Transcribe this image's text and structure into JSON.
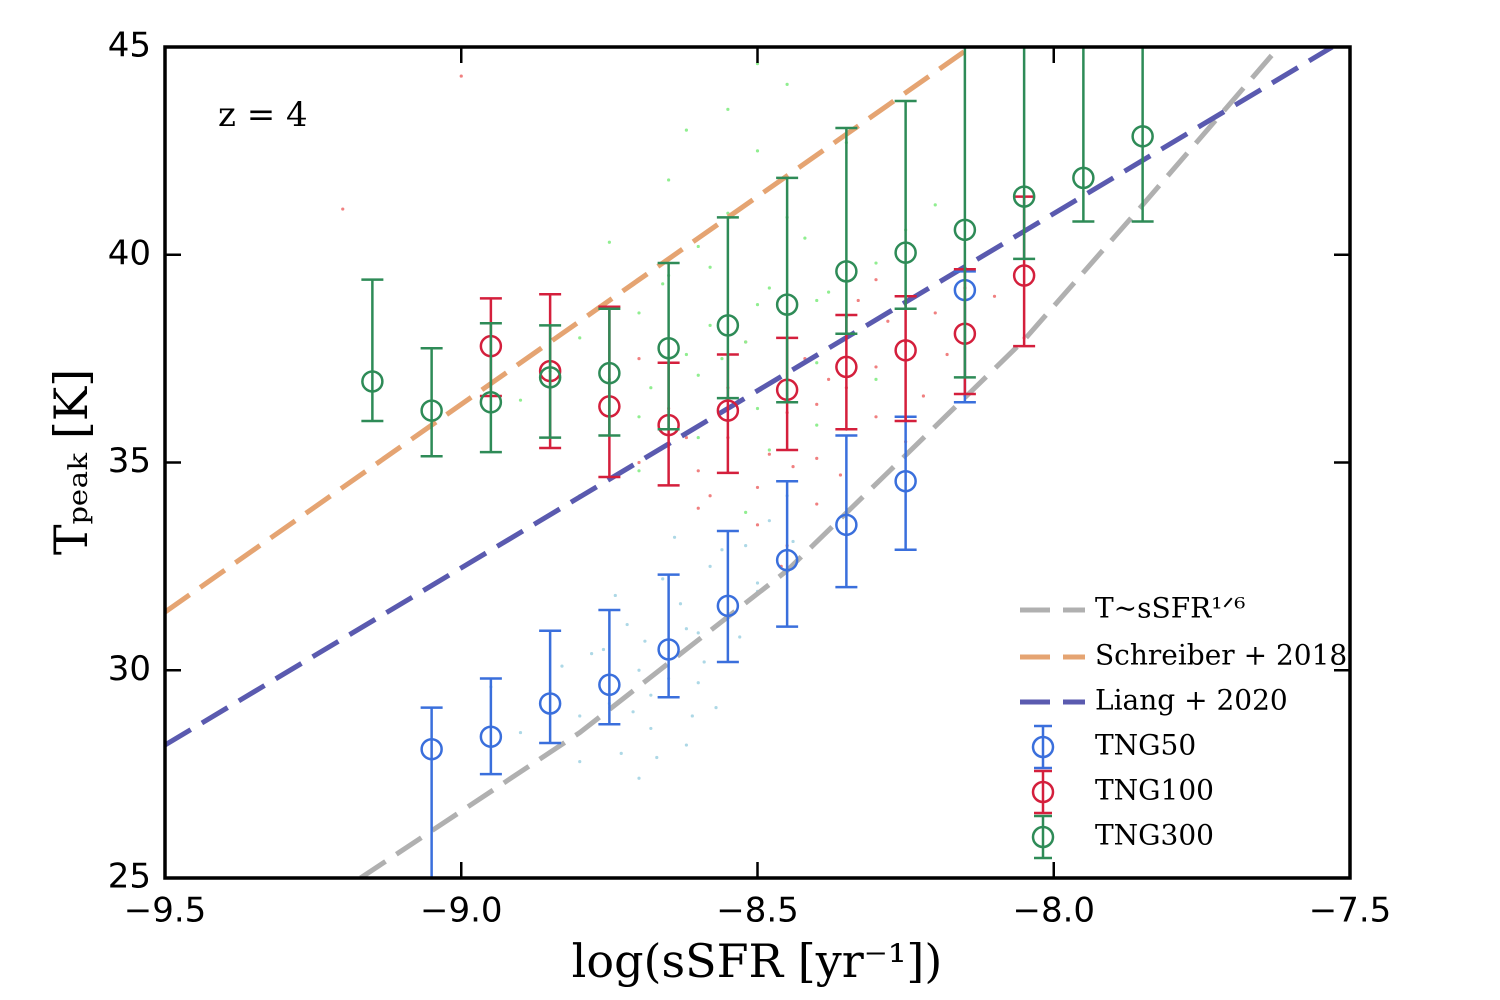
{
  "chart_data": {
    "type": "scatter",
    "xlabel": "log(sSFR [yr⁻¹])",
    "ylabel": "Tₚₑₐₖ [K]",
    "annotation": "z = 4",
    "xlim": [
      -9.5,
      -7.5
    ],
    "ylim": [
      25,
      45
    ],
    "xticks": [
      {
        "value": -9.5,
        "label": "−9.5"
      },
      {
        "value": -9.0,
        "label": "−9.0"
      },
      {
        "value": -8.5,
        "label": "−8.5"
      },
      {
        "value": -8.0,
        "label": "−8.0"
      },
      {
        "value": -7.5,
        "label": "−7.5"
      }
    ],
    "yticks": [
      25,
      30,
      35,
      40,
      45
    ],
    "legend": "lower right",
    "clouds": [
      {
        "color": "#add8e6",
        "x": [
          -8.9,
          -8.85,
          -8.8,
          -8.78,
          -8.75,
          -8.72,
          -8.7,
          -8.68,
          -8.65,
          -8.63,
          -8.6,
          -8.58,
          -8.55,
          -8.52,
          -8.5,
          -8.48,
          -8.45,
          -8.8,
          -8.7,
          -8.62,
          -8.57,
          -8.66,
          -8.74,
          -8.69,
          -8.59,
          -8.53,
          -8.76,
          -8.64,
          -8.71,
          -8.61,
          -8.83,
          -8.67,
          -8.56,
          -8.73,
          -8.62,
          -8.5,
          -8.95,
          -8.44,
          -8.68,
          -8.6
        ],
        "y": [
          28.5,
          29.5,
          28.9,
          30.4,
          29.2,
          31.1,
          30.0,
          28.6,
          29.8,
          31.6,
          30.9,
          32.5,
          31.3,
          33.0,
          32.1,
          33.6,
          34.2,
          27.8,
          27.4,
          28.2,
          29.1,
          32.2,
          31.8,
          30.7,
          30.2,
          30.8,
          30.5,
          33.2,
          29.0,
          28.9,
          30.1,
          27.9,
          32.9,
          28.0,
          31.0,
          31.9,
          29.6,
          33.1,
          29.4,
          29.7
        ]
      },
      {
        "color": "#f08080",
        "x": [
          -8.7,
          -8.6,
          -8.55,
          -8.5,
          -8.45,
          -8.4,
          -8.35,
          -8.3,
          -8.25,
          -8.2,
          -8.15,
          -8.5,
          -8.45,
          -8.4,
          -8.55,
          -8.35,
          -8.3,
          -8.6,
          -8.65,
          -8.42,
          -8.38,
          -8.28,
          -8.48,
          -8.52,
          -8.33,
          -9.2,
          -9.0,
          -8.1,
          -8.05,
          -8.22,
          -8.58,
          -8.36,
          -8.44,
          -8.18,
          -8.3,
          -8.62,
          -8.7,
          -8.25,
          -8.46,
          -8.4
        ],
        "y": [
          35.0,
          34.8,
          35.6,
          34.4,
          36.2,
          35.1,
          36.8,
          37.3,
          37.9,
          38.6,
          39.2,
          33.5,
          33.0,
          34.0,
          36.8,
          35.8,
          36.1,
          33.9,
          36.3,
          37.5,
          37.0,
          38.4,
          35.2,
          37.9,
          38.9,
          41.1,
          44.3,
          39.0,
          38.0,
          36.6,
          34.2,
          34.7,
          34.9,
          37.6,
          39.4,
          35.6,
          37.5,
          35.5,
          32.5,
          36.4
        ]
      },
      {
        "color": "#90ee90",
        "x": [
          -8.9,
          -8.85,
          -8.8,
          -8.75,
          -8.7,
          -8.68,
          -8.65,
          -8.62,
          -8.6,
          -8.58,
          -8.55,
          -8.52,
          -8.5,
          -8.48,
          -8.45,
          -8.42,
          -8.4,
          -8.38,
          -8.35,
          -8.3,
          -8.25,
          -8.2,
          -8.7,
          -8.6,
          -8.5,
          -8.45,
          -8.55,
          -8.65,
          -8.4,
          -8.35,
          -8.75,
          -8.5,
          -8.6,
          -8.55,
          -8.45,
          -8.62,
          -8.5,
          -8.4,
          -8.7,
          -8.58,
          -8.48,
          -8.52,
          -8.3,
          -8.8,
          -8.66,
          -8.56
        ],
        "y": [
          36.5,
          37.2,
          38.0,
          37.0,
          38.6,
          36.8,
          39.5,
          37.6,
          40.2,
          38.3,
          41.0,
          37.9,
          42.5,
          39.2,
          38.0,
          40.4,
          37.4,
          39.1,
          38.5,
          39.8,
          40.6,
          41.2,
          34.8,
          35.6,
          36.3,
          44.1,
          43.5,
          41.8,
          35.9,
          42.7,
          40.3,
          38.8,
          37.1,
          36.0,
          40.9,
          43.0,
          44.6,
          38.9,
          36.1,
          39.7,
          35.3,
          33.8,
          37.0,
          34.2,
          39.3,
          37.5
        ]
      }
    ],
    "lines": [
      {
        "name": "T∼sSFR¹ᐟ⁶",
        "color": "#b0b0b0",
        "x": [
          -9.17,
          -8.8,
          -8.45,
          -8.05,
          -7.85,
          -7.62
        ],
        "values": [
          25,
          28.5,
          32.4,
          37.95,
          41.2,
          45
        ]
      },
      {
        "name": "Schreiber + 2018",
        "color": "#e5a472",
        "x": [
          -9.5,
          -8.14
        ],
        "values": [
          31.4,
          45
        ]
      },
      {
        "name": "Liang + 2020",
        "color": "#5a5aaf",
        "x": [
          -9.5,
          -7.53
        ],
        "values": [
          28.2,
          45
        ]
      }
    ],
    "series": [
      {
        "name": "TNG50",
        "color": "#3a6fdc",
        "x": [
          -9.05,
          -8.95,
          -8.85,
          -8.75,
          -8.65,
          -8.55,
          -8.45,
          -8.35,
          -8.25,
          -8.15
        ],
        "values": [
          28.1,
          28.4,
          29.2,
          29.65,
          30.5,
          31.55,
          32.65,
          33.5,
          34.55,
          39.15
        ],
        "lower": [
          24.5,
          27.5,
          28.25,
          28.7,
          29.35,
          30.2,
          31.05,
          32.0,
          32.9,
          36.45
        ],
        "upper": [
          29.1,
          29.8,
          30.95,
          31.45,
          32.3,
          33.35,
          34.55,
          35.65,
          36.1,
          39.6
        ]
      },
      {
        "name": "TNG100",
        "color": "#d41f3c",
        "x": [
          -8.95,
          -8.85,
          -8.75,
          -8.65,
          -8.55,
          -8.45,
          -8.35,
          -8.25,
          -8.15,
          -8.05
        ],
        "values": [
          37.8,
          37.2,
          36.35,
          35.9,
          36.25,
          36.75,
          37.3,
          37.7,
          38.1,
          39.5
        ],
        "lower": [
          36.6,
          35.35,
          34.65,
          34.45,
          34.75,
          35.3,
          35.8,
          36.0,
          36.65,
          37.8
        ],
        "upper": [
          38.95,
          39.05,
          38.75,
          37.4,
          37.6,
          38.0,
          38.55,
          39.0,
          39.65,
          41.4
        ]
      },
      {
        "name": "TNG300",
        "color": "#2e8b57",
        "x": [
          -9.15,
          -9.05,
          -8.95,
          -8.85,
          -8.75,
          -8.65,
          -8.55,
          -8.45,
          -8.35,
          -8.25,
          -8.15,
          -8.05,
          -7.95,
          -7.85
        ],
        "values": [
          36.95,
          36.25,
          36.45,
          37.05,
          37.15,
          37.75,
          38.3,
          38.8,
          39.6,
          40.05,
          40.6,
          41.4,
          41.85,
          42.85
        ],
        "lower": [
          36.0,
          35.15,
          35.25,
          35.6,
          35.65,
          35.8,
          36.55,
          36.45,
          38.1,
          38.7,
          37.05,
          39.9,
          40.8,
          40.8
        ],
        "upper": [
          39.4,
          37.75,
          38.35,
          38.3,
          38.7,
          39.8,
          40.9,
          41.85,
          43.05,
          43.7,
          45.5,
          45.5,
          45.5,
          45.5
        ]
      }
    ]
  }
}
